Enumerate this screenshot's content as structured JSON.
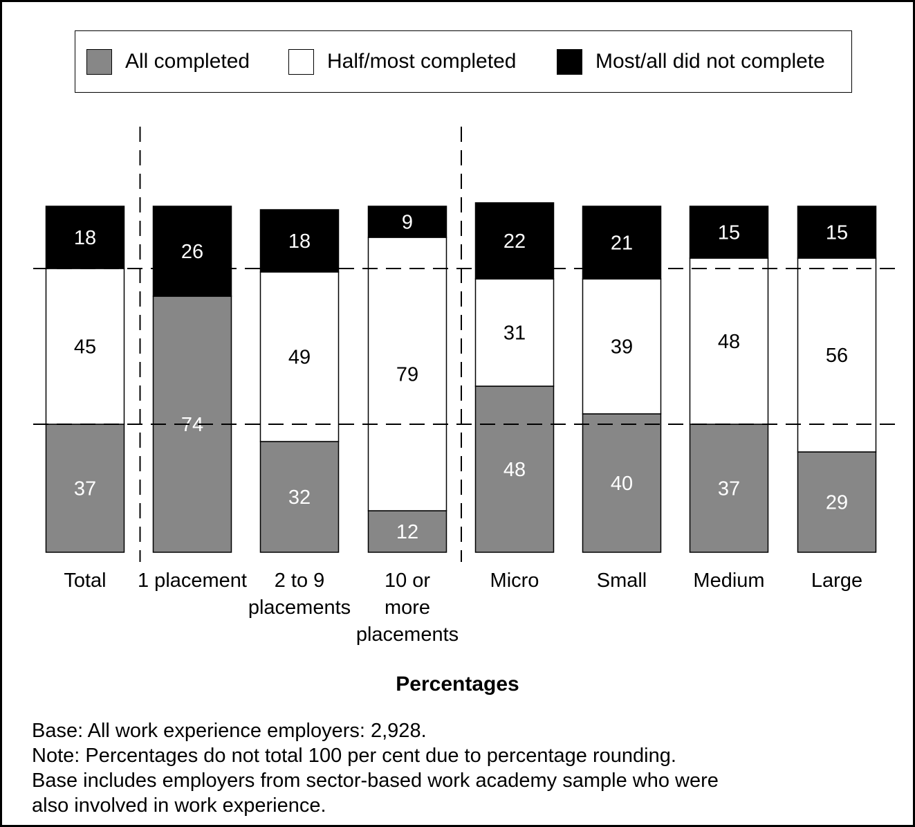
{
  "chart_data": {
    "type": "bar",
    "stacked": true,
    "categories": [
      "Total",
      "1 placement",
      "2 to 9\nplacements",
      "10 or\nmore\nplacements",
      "Micro",
      "Small",
      "Medium",
      "Large"
    ],
    "series": [
      {
        "name": "All completed",
        "color": "#878787",
        "values": [
          37,
          74,
          32,
          12,
          48,
          40,
          37,
          29
        ],
        "labels": [
          "37",
          "74",
          "32",
          "12",
          "48",
          "40",
          "37",
          "29"
        ],
        "label_color": "#ffffff"
      },
      {
        "name": "Half/most completed",
        "color": "#ffffff",
        "values": [
          45,
          0,
          49,
          79,
          31,
          39,
          48,
          56
        ],
        "labels": [
          "45",
          "",
          "49",
          "79",
          "31",
          "39",
          "48",
          "56"
        ],
        "label_color": "#000000"
      },
      {
        "name": "Most/all did not complete",
        "color": "#000000",
        "values": [
          18,
          26,
          18,
          9,
          22,
          21,
          15,
          15
        ],
        "labels": [
          "18",
          "26",
          "18",
          "9",
          "22",
          "21",
          "15",
          "15"
        ],
        "label_color": "#ffffff"
      }
    ],
    "xlabel": "Percentages",
    "ylim": [
      0,
      100
    ],
    "legend_position": "top",
    "grid": false,
    "reference_lines": [
      37,
      82
    ],
    "group_separators_after": [
      "Total",
      "10 or\nmore\nplacements"
    ]
  },
  "legend": {
    "items": [
      {
        "label": "All completed",
        "color": "#878787"
      },
      {
        "label": "Half/most completed",
        "color": "#ffffff"
      },
      {
        "label": "Most/all did not complete",
        "color": "#000000"
      }
    ]
  },
  "notes": {
    "base": "Base: All work experience employers: 2,928.",
    "rounding": "Note: Percentages do not total 100 per cent due to percentage rounding.",
    "sector_line1": "Base includes employers from sector-based work academy sample who were",
    "sector_line2": "also involved in work experience."
  }
}
